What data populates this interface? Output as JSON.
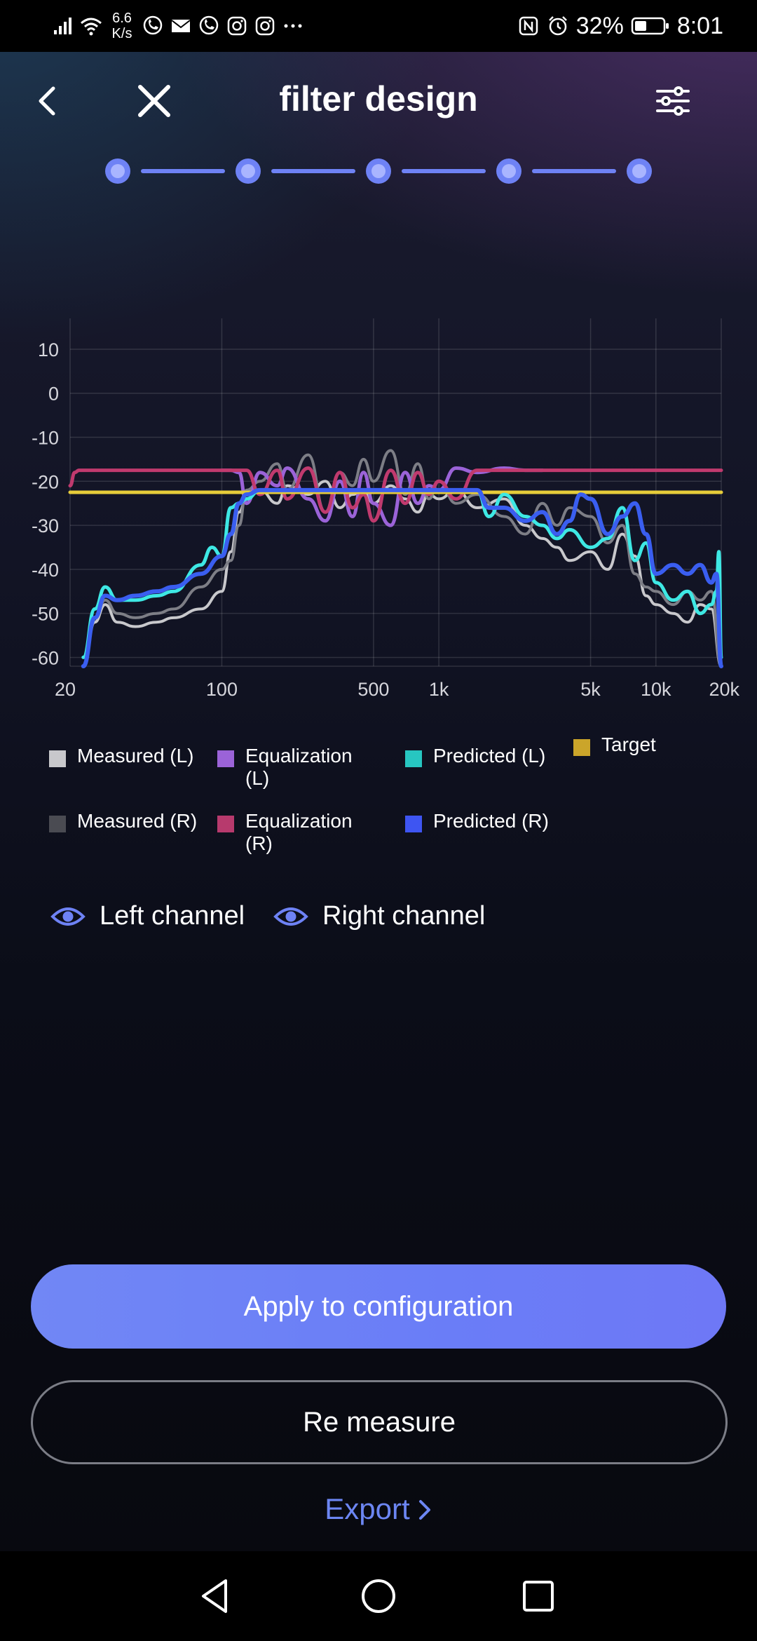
{
  "status_bar": {
    "network_speed_value": "6.6",
    "network_speed_unit": "K/s",
    "battery": "32%",
    "time": "8:01",
    "icons": [
      "signal-icon",
      "wifi-icon",
      "viber-icon",
      "mail-icon",
      "viber-icon",
      "instagram-icon",
      "instagram-icon",
      "more-icon",
      "nfc-icon",
      "alarm-icon",
      "battery-icon"
    ]
  },
  "header": {
    "title": "filter design",
    "back_icon": "chevron-left-icon",
    "close_icon": "close-icon",
    "settings_icon": "sliders-icon"
  },
  "stepper": {
    "steps": 5,
    "current": 5
  },
  "chart_data": {
    "type": "line",
    "xscale": "log",
    "xlim": [
      20,
      20000
    ],
    "ylim": [
      -62,
      17
    ],
    "x_ticks": [
      20,
      100,
      500,
      1000,
      5000,
      10000,
      20000
    ],
    "x_tick_labels": [
      "20",
      "100",
      "500",
      "1k",
      "5k",
      "10k",
      "20k"
    ],
    "y_ticks": [
      10,
      0,
      -10,
      -20,
      -30,
      -40,
      -50,
      -60
    ],
    "y_tick_labels": [
      "10",
      "0",
      "-10",
      "-20",
      "-30",
      "-40",
      "-50",
      "-60"
    ],
    "grid": true,
    "series": [
      {
        "name": "Measured (L)",
        "color": "#c8c8cc",
        "x": [
          23,
          26,
          29,
          33,
          40,
          50,
          60,
          80,
          100,
          110,
          120,
          130,
          150,
          180,
          200,
          250,
          300,
          350,
          400,
          450,
          500,
          600,
          700,
          800,
          900,
          1000,
          1200,
          1500,
          2000,
          2500,
          3000,
          3500,
          4000,
          5000,
          6000,
          7000,
          8000,
          9000,
          10000,
          12000,
          14000,
          16000,
          18000,
          20000
        ],
        "y": [
          -62,
          -52,
          -48,
          -52,
          -53,
          -52,
          -51,
          -49,
          -45,
          -36,
          -27,
          -24,
          -22,
          -25,
          -21,
          -23,
          -20,
          -26,
          -23,
          -22,
          -25,
          -21,
          -24,
          -27,
          -23,
          -24,
          -22,
          -26,
          -24,
          -30,
          -33,
          -35,
          -38,
          -36,
          -40,
          -32,
          -37,
          -46,
          -48,
          -50,
          -52,
          -48,
          -49,
          -63
        ]
      },
      {
        "name": "Measured (R)",
        "color": "#7d7e86",
        "x": [
          23,
          26,
          29,
          33,
          40,
          50,
          60,
          80,
          100,
          110,
          120,
          130,
          150,
          180,
          200,
          250,
          300,
          350,
          400,
          450,
          500,
          600,
          700,
          800,
          900,
          1000,
          1200,
          1500,
          2000,
          2500,
          3000,
          3500,
          4000,
          5000,
          6000,
          7000,
          8000,
          9000,
          10000,
          12000,
          14000,
          16000,
          18000,
          20000
        ],
        "y": [
          -62,
          -51,
          -47,
          -50,
          -51,
          -50,
          -49,
          -44,
          -40,
          -38,
          -30,
          -22,
          -20,
          -16,
          -22,
          -14,
          -27,
          -18,
          -21,
          -15,
          -20,
          -13,
          -23,
          -16,
          -24,
          -20,
          -25,
          -23,
          -28,
          -32,
          -25,
          -30,
          -26,
          -28,
          -34,
          -30,
          -41,
          -44,
          -45,
          -48,
          -45,
          -47,
          -45,
          -62
        ]
      },
      {
        "name": "Equalization (L)",
        "color": "#9b63d8",
        "x": [
          100,
          110,
          120,
          130,
          150,
          180,
          200,
          250,
          300,
          350,
          400,
          450,
          500,
          600,
          700,
          800,
          900,
          1000,
          1200,
          1500,
          2000,
          2500,
          3000
        ],
        "y": [
          -17.5,
          -17.5,
          -18,
          -25,
          -18,
          -21,
          -17,
          -24,
          -29,
          -20,
          -28,
          -18,
          -25,
          -30,
          -18,
          -25,
          -21,
          -22,
          -17,
          -18,
          -17,
          -17.5,
          -17.5
        ]
      },
      {
        "name": "Equalization (R)",
        "color": "#c03a6e",
        "x": [
          20,
          21,
          22,
          25,
          30,
          40,
          50,
          60,
          80,
          100,
          120,
          130,
          150,
          180,
          200,
          250,
          300,
          350,
          400,
          450,
          500,
          600,
          700,
          800,
          900,
          1000,
          1200,
          1500,
          1700,
          2000,
          3000,
          5000,
          10000,
          20000
        ],
        "y": [
          -21,
          -18,
          -17.5,
          -17.5,
          -17.5,
          -17.5,
          -17.5,
          -17.5,
          -17.5,
          -17.5,
          -17.5,
          -17.5,
          -23,
          -17.5,
          -24,
          -17,
          -27,
          -18,
          -26,
          -23,
          -29,
          -17.5,
          -25,
          -18,
          -23,
          -20,
          -24,
          -17.5,
          -17.5,
          -17.5,
          -17.5,
          -17.5,
          -17.5,
          -17.5
        ]
      },
      {
        "name": "Predicted (L)",
        "color": "#3ee8e4",
        "x": [
          23,
          26,
          29,
          33,
          40,
          50,
          60,
          80,
          90,
          100,
          110,
          120,
          130,
          150,
          200,
          300,
          500,
          1000,
          1500,
          1700,
          2000,
          2500,
          3000,
          3500,
          4000,
          5000,
          6000,
          7000,
          8000,
          9000,
          10000,
          12000,
          14000,
          16000,
          18000,
          19000,
          19500,
          20000
        ],
        "y": [
          -60,
          -49,
          -44,
          -47,
          -47,
          -46,
          -45,
          -39,
          -35,
          -37,
          -26,
          -25,
          -24,
          -22,
          -22,
          -22,
          -22,
          -22,
          -22,
          -28,
          -23,
          -28,
          -30,
          -33,
          -31,
          -35,
          -33,
          -26,
          -38,
          -34,
          -43,
          -47,
          -45,
          -50,
          -48,
          -45,
          -36,
          -60
        ]
      },
      {
        "name": "Predicted (R)",
        "color": "#3a5ef0",
        "x": [
          23,
          26,
          29,
          33,
          40,
          50,
          60,
          80,
          100,
          110,
          120,
          130,
          150,
          200,
          300,
          500,
          1000,
          1500,
          1700,
          2000,
          2500,
          3000,
          3500,
          4000,
          4500,
          5000,
          6000,
          7000,
          8000,
          9000,
          10000,
          12000,
          14000,
          16000,
          18000,
          19000,
          20000
        ],
        "y": [
          -62,
          -51,
          -46,
          -47,
          -46,
          -45,
          -44,
          -41,
          -37,
          -32,
          -25,
          -23,
          -22,
          -22,
          -22,
          -22,
          -22,
          -22,
          -26,
          -26,
          -29,
          -27,
          -32,
          -29,
          -23,
          -24,
          -32,
          -28,
          -25,
          -32,
          -41,
          -39,
          -41,
          -39,
          -43,
          -41,
          -63
        ]
      },
      {
        "name": "Target",
        "color": "#e6cc3a",
        "x": [
          20,
          20000
        ],
        "y": [
          -22.5,
          -22.5
        ]
      }
    ]
  },
  "legend": {
    "items": [
      {
        "label": "Measured (L)",
        "color": "#c8c8cc"
      },
      {
        "label": "Equalization\n(L)",
        "color": "#9b63d8"
      },
      {
        "label": "Predicted (L)",
        "color": "#27c6c1"
      },
      {
        "label": "Target",
        "color": "#cba52a"
      },
      {
        "label": "Measured (R)",
        "color": "#4a4b52"
      },
      {
        "label": "Equalization\n(R)",
        "color": "#b73a6d"
      },
      {
        "label": "Predicted (R)",
        "color": "#3e55f2"
      }
    ]
  },
  "channels": {
    "left": {
      "label": "Left channel",
      "icon": "eye-icon"
    },
    "right": {
      "label": "Right channel",
      "icon": "eye-icon"
    }
  },
  "actions": {
    "apply_label": "Apply to configuration",
    "remeasure_label": "Re measure",
    "export_label": "Export"
  },
  "nav_bar": {
    "icons": [
      "back-triangle-icon",
      "home-circle-icon",
      "recents-square-icon"
    ]
  },
  "colors": {
    "accent": "#6e82f5",
    "link": "#6c86f2"
  }
}
